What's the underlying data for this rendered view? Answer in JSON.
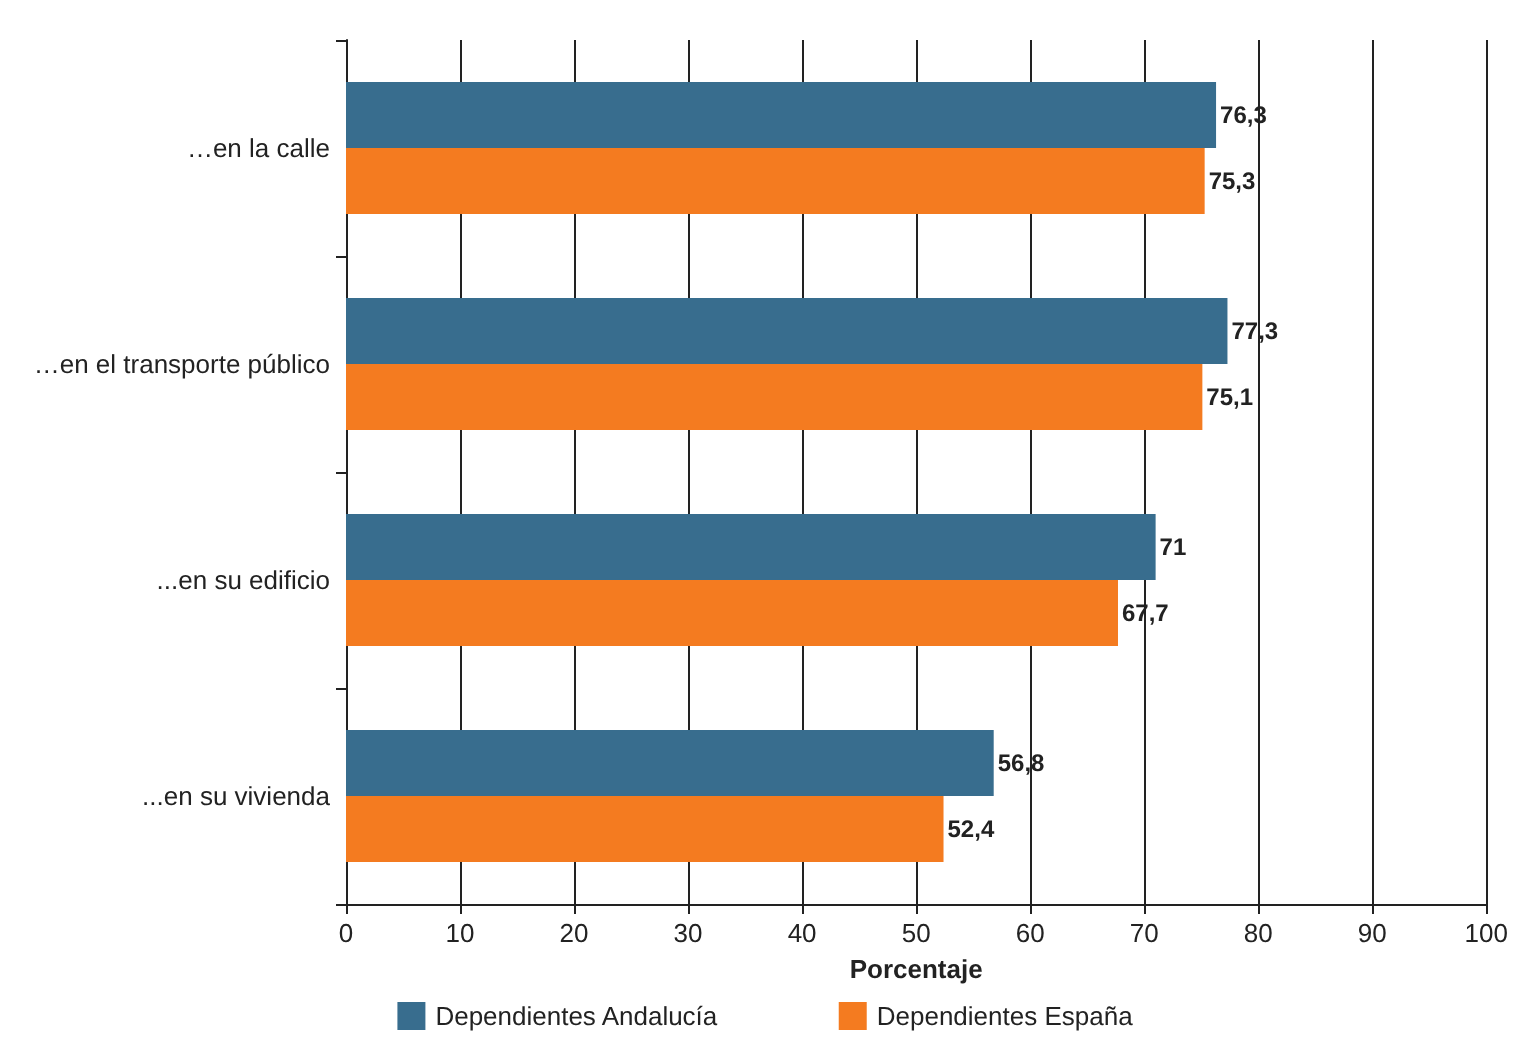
{
  "chart_data": {
    "type": "bar",
    "orientation": "horizontal",
    "xlabel": "Porcentaje",
    "categories": [
      "…en la calle",
      "…en el transporte público",
      "...en su edificio",
      "...en su vivienda"
    ],
    "series": [
      {
        "name": "Dependientes Andalucía",
        "color": "#386d8e",
        "values": [
          76.3,
          77.3,
          71,
          56.8
        ],
        "value_labels": [
          "76,3",
          "77,3",
          "71",
          "56,8"
        ]
      },
      {
        "name": "Dependientes España",
        "color": "#f47b20",
        "values": [
          75.3,
          75.1,
          67.7,
          52.4
        ],
        "value_labels": [
          "75,3",
          "75,1",
          "67,7",
          "52,4"
        ]
      }
    ],
    "xlim": [
      0,
      100
    ],
    "xticks": [
      0,
      10,
      20,
      30,
      40,
      50,
      60,
      70,
      80,
      90,
      100
    ],
    "grid": "x",
    "legend": "bottom"
  }
}
